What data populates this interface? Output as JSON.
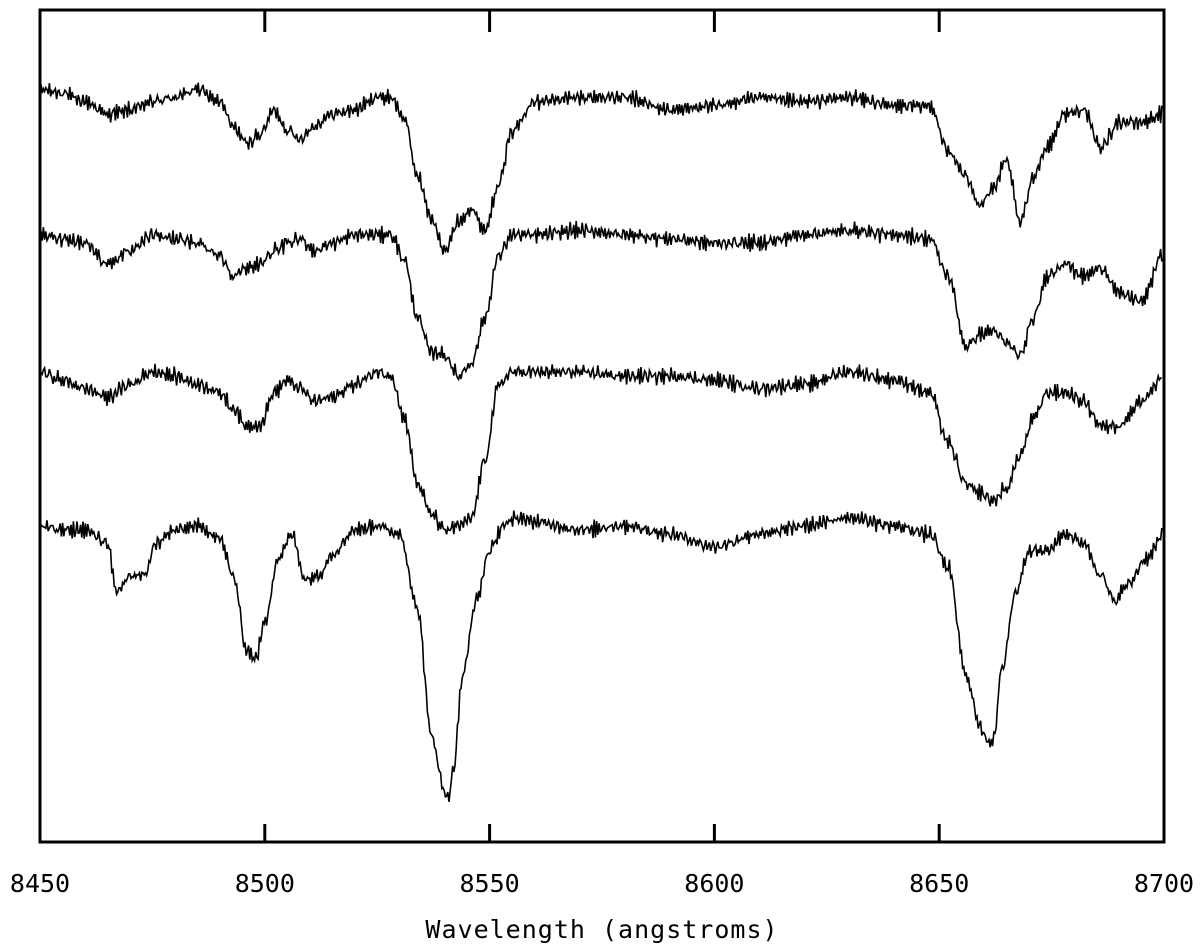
{
  "chart_data": {
    "type": "line",
    "title": "",
    "xlabel": "Wavelength (angstroms)",
    "ylabel": "",
    "xlim": [
      8450,
      8700
    ],
    "ylim": [
      0,
      1
    ],
    "grid": false,
    "x_ticks": [
      8450,
      8500,
      8550,
      8600,
      8650,
      8700
    ],
    "x_tick_labels": [
      "8450",
      "8500",
      "8550",
      "8600",
      "8650",
      "8700"
    ],
    "noise_amplitude": 0.012,
    "series": [
      {
        "x": [
          8450,
          8455,
          8460,
          8465,
          8470,
          8475,
          8480,
          8485,
          8490,
          8493,
          8496,
          8499,
          8502,
          8505,
          8508,
          8511,
          8515,
          8520,
          8525,
          8528,
          8531,
          8534,
          8537,
          8540,
          8543,
          8546,
          8549,
          8552,
          8555,
          8560,
          8570,
          8580,
          8590,
          8600,
          8610,
          8620,
          8630,
          8640,
          8648,
          8652,
          8656,
          8659,
          8662,
          8665,
          8668,
          8671,
          8674,
          8678,
          8682,
          8686,
          8690,
          8695,
          8700
        ],
        "y": [
          0.905,
          0.9,
          0.89,
          0.875,
          0.88,
          0.89,
          0.895,
          0.905,
          0.89,
          0.86,
          0.84,
          0.85,
          0.88,
          0.855,
          0.845,
          0.86,
          0.875,
          0.88,
          0.895,
          0.895,
          0.87,
          0.8,
          0.75,
          0.71,
          0.745,
          0.76,
          0.735,
          0.79,
          0.855,
          0.89,
          0.895,
          0.895,
          0.88,
          0.885,
          0.895,
          0.89,
          0.895,
          0.885,
          0.885,
          0.83,
          0.8,
          0.765,
          0.785,
          0.82,
          0.745,
          0.8,
          0.835,
          0.875,
          0.88,
          0.835,
          0.865,
          0.865,
          0.875
        ]
      },
      {
        "x": [
          8450,
          8455,
          8460,
          8465,
          8470,
          8475,
          8480,
          8485,
          8490,
          8493,
          8496,
          8499,
          8502,
          8505,
          8508,
          8511,
          8515,
          8520,
          8525,
          8528,
          8531,
          8534,
          8537,
          8540,
          8543,
          8546,
          8549,
          8552,
          8555,
          8560,
          8570,
          8580,
          8590,
          8600,
          8610,
          8620,
          8630,
          8640,
          8648,
          8652,
          8656,
          8659,
          8662,
          8665,
          8668,
          8671,
          8674,
          8678,
          8682,
          8686,
          8690,
          8695,
          8700
        ],
        "y": [
          0.73,
          0.725,
          0.72,
          0.695,
          0.71,
          0.73,
          0.725,
          0.72,
          0.705,
          0.68,
          0.69,
          0.695,
          0.71,
          0.72,
          0.725,
          0.71,
          0.72,
          0.73,
          0.73,
          0.73,
          0.7,
          0.63,
          0.59,
          0.585,
          0.56,
          0.575,
          0.63,
          0.705,
          0.73,
          0.73,
          0.735,
          0.73,
          0.725,
          0.72,
          0.72,
          0.73,
          0.735,
          0.73,
          0.725,
          0.68,
          0.595,
          0.61,
          0.615,
          0.6,
          0.585,
          0.63,
          0.68,
          0.695,
          0.68,
          0.69,
          0.66,
          0.65,
          0.71
        ]
      },
      {
        "x": [
          8450,
          8455,
          8460,
          8465,
          8470,
          8475,
          8480,
          8485,
          8490,
          8493,
          8496,
          8499,
          8502,
          8505,
          8508,
          8511,
          8515,
          8520,
          8525,
          8528,
          8531,
          8534,
          8537,
          8540,
          8543,
          8546,
          8549,
          8552,
          8555,
          8560,
          8570,
          8580,
          8590,
          8600,
          8610,
          8620,
          8630,
          8640,
          8648,
          8652,
          8656,
          8659,
          8662,
          8665,
          8668,
          8671,
          8674,
          8678,
          8682,
          8686,
          8690,
          8695,
          8700
        ],
        "y": [
          0.565,
          0.555,
          0.545,
          0.535,
          0.55,
          0.565,
          0.56,
          0.55,
          0.54,
          0.52,
          0.5,
          0.5,
          0.54,
          0.555,
          0.545,
          0.53,
          0.535,
          0.55,
          0.565,
          0.56,
          0.51,
          0.43,
          0.395,
          0.375,
          0.38,
          0.39,
          0.46,
          0.55,
          0.565,
          0.565,
          0.565,
          0.56,
          0.56,
          0.555,
          0.545,
          0.55,
          0.565,
          0.555,
          0.54,
          0.48,
          0.43,
          0.42,
          0.41,
          0.425,
          0.465,
          0.51,
          0.54,
          0.54,
          0.53,
          0.5,
          0.5,
          0.53,
          0.56
        ]
      },
      {
        "x": [
          8450,
          8455,
          8460,
          8465,
          8467,
          8470,
          8473,
          8476,
          8480,
          8485,
          8490,
          8493,
          8496,
          8498,
          8500,
          8503,
          8506,
          8509,
          8512,
          8515,
          8520,
          8525,
          8530,
          8534,
          8537,
          8540,
          8541,
          8542,
          8544,
          8547,
          8550,
          8553,
          8556,
          8560,
          8570,
          8580,
          8590,
          8600,
          8610,
          8620,
          8630,
          8640,
          8648,
          8652,
          8656,
          8659,
          8661,
          8662,
          8664,
          8667,
          8670,
          8674,
          8678,
          8682,
          8686,
          8689,
          8692,
          8696,
          8700
        ],
        "y": [
          0.38,
          0.375,
          0.375,
          0.36,
          0.3,
          0.32,
          0.32,
          0.36,
          0.375,
          0.38,
          0.365,
          0.32,
          0.23,
          0.22,
          0.265,
          0.34,
          0.37,
          0.315,
          0.32,
          0.345,
          0.375,
          0.38,
          0.37,
          0.28,
          0.13,
          0.06,
          0.055,
          0.09,
          0.2,
          0.29,
          0.35,
          0.38,
          0.39,
          0.385,
          0.375,
          0.38,
          0.37,
          0.355,
          0.37,
          0.38,
          0.39,
          0.38,
          0.37,
          0.33,
          0.2,
          0.14,
          0.12,
          0.12,
          0.21,
          0.3,
          0.35,
          0.35,
          0.37,
          0.36,
          0.32,
          0.29,
          0.31,
          0.34,
          0.37
        ]
      }
    ]
  }
}
